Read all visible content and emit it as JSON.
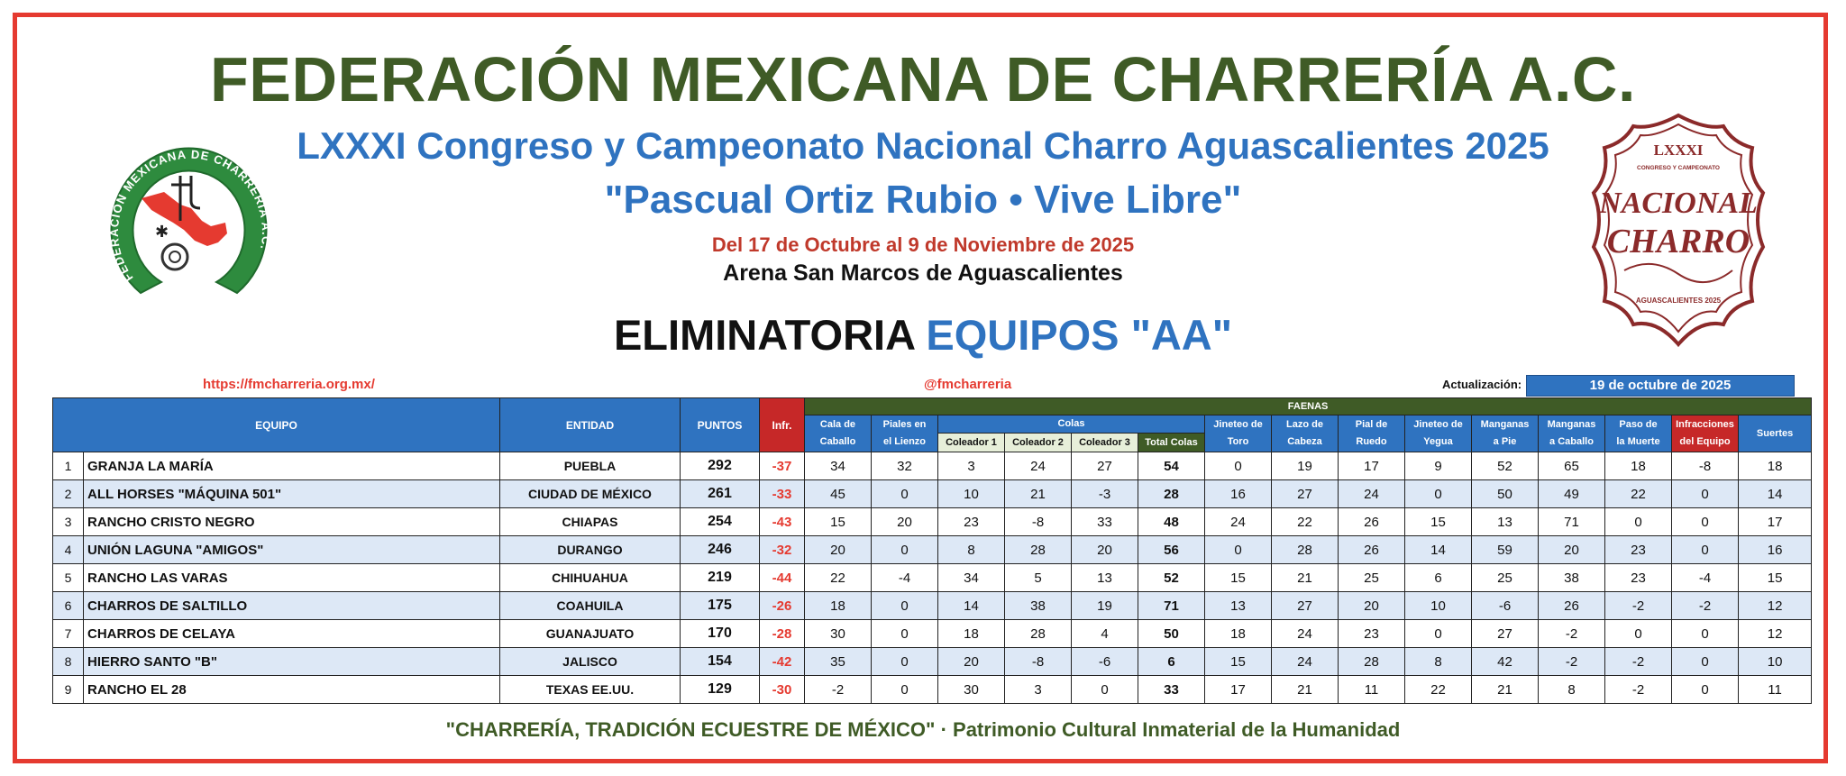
{
  "header": {
    "title": "FEDERACIÓN MEXICANA DE CHARRERÍA A.C.",
    "subtitle": "LXXXI Congreso y Campeonato Nacional Charro Aguascalientes 2025",
    "motto": "\"Pascual Ortiz Rubio • Vive Libre\"",
    "dates": "Del 17 de Octubre al 9 de Noviembre de 2025",
    "arena": "Arena San Marcos de Aguascalientes",
    "section_a": "ELIMINATORIA",
    "section_b": "EQUIPOS \"AA\""
  },
  "logos": {
    "left": "FEDERACION MEXICANA DE CHARRERIA A.C.",
    "right_top": "LXXXI",
    "right_small": "CONGRESO Y CAMPEONATO",
    "right_main_1": "NACIONAL",
    "right_main_2": "CHARRO",
    "right_bottom": "AGUASCALIENTES 2025"
  },
  "info": {
    "url": "https://fmcharreria.org.mx/",
    "handle": "@fmcharreria",
    "updated_label": "Actualización:",
    "updated_value": "19 de octubre de 2025"
  },
  "table": {
    "headers": {
      "equipo": "EQUIPO",
      "entidad": "ENTIDAD",
      "puntos": "PUNTOS",
      "infr": "Infr.",
      "faenas": "FAENAS",
      "cala_1": "Cala de",
      "cala_2": "Caballo",
      "piales_1": "Piales en",
      "piales_2": "el Lienzo",
      "colas": "Colas",
      "coleador1": "Coleador 1",
      "coleador2": "Coleador 2",
      "coleador3": "Coleador 3",
      "total_colas": "Total Colas",
      "jinete_toro_1": "Jineteo de",
      "jinete_toro_2": "Toro",
      "lazo_1": "Lazo de",
      "lazo_2": "Cabeza",
      "pial_1": "Pial de",
      "pial_2": "Ruedo",
      "jinete_yegua_1": "Jineteo de",
      "jinete_yegua_2": "Yegua",
      "manganas_pie_1": "Manganas",
      "manganas_pie_2": "a Pie",
      "manganas_cab_1": "Manganas",
      "manganas_cab_2": "a Caballo",
      "paso_1": "Paso de",
      "paso_2": "la Muerte",
      "infeq_1": "Infracciones",
      "infeq_2": "del Equipo",
      "suertes": "Suertes"
    },
    "rows": [
      {
        "pos": "1",
        "equipo": "GRANJA LA MARÍA",
        "entidad": "PUEBLA",
        "puntos": "292",
        "infr": "-37",
        "cala": "34",
        "piales": "32",
        "c1": "3",
        "c2": "24",
        "c3": "27",
        "total": "54",
        "toro": "0",
        "lazo": "19",
        "pial": "17",
        "yegua": "9",
        "mpie": "52",
        "mcab": "65",
        "paso": "18",
        "infeq": "-8",
        "suertes": "18"
      },
      {
        "pos": "2",
        "equipo": "ALL HORSES \"MÁQUINA 501\"",
        "entidad": "CIUDAD DE MÉXICO",
        "puntos": "261",
        "infr": "-33",
        "cala": "45",
        "piales": "0",
        "c1": "10",
        "c2": "21",
        "c3": "-3",
        "total": "28",
        "toro": "16",
        "lazo": "27",
        "pial": "24",
        "yegua": "0",
        "mpie": "50",
        "mcab": "49",
        "paso": "22",
        "infeq": "0",
        "suertes": "14"
      },
      {
        "pos": "3",
        "equipo": "RANCHO CRISTO NEGRO",
        "entidad": "CHIAPAS",
        "puntos": "254",
        "infr": "-43",
        "cala": "15",
        "piales": "20",
        "c1": "23",
        "c2": "-8",
        "c3": "33",
        "total": "48",
        "toro": "24",
        "lazo": "22",
        "pial": "26",
        "yegua": "15",
        "mpie": "13",
        "mcab": "71",
        "paso": "0",
        "infeq": "0",
        "suertes": "17"
      },
      {
        "pos": "4",
        "equipo": "UNIÓN LAGUNA \"AMIGOS\"",
        "entidad": "DURANGO",
        "puntos": "246",
        "infr": "-32",
        "cala": "20",
        "piales": "0",
        "c1": "8",
        "c2": "28",
        "c3": "20",
        "total": "56",
        "toro": "0",
        "lazo": "28",
        "pial": "26",
        "yegua": "14",
        "mpie": "59",
        "mcab": "20",
        "paso": "23",
        "infeq": "0",
        "suertes": "16"
      },
      {
        "pos": "5",
        "equipo": "RANCHO LAS VARAS",
        "entidad": "CHIHUAHUA",
        "puntos": "219",
        "infr": "-44",
        "cala": "22",
        "piales": "-4",
        "c1": "34",
        "c2": "5",
        "c3": "13",
        "total": "52",
        "toro": "15",
        "lazo": "21",
        "pial": "25",
        "yegua": "6",
        "mpie": "25",
        "mcab": "38",
        "paso": "23",
        "infeq": "-4",
        "suertes": "15"
      },
      {
        "pos": "6",
        "equipo": "CHARROS DE SALTILLO",
        "entidad": "COAHUILA",
        "puntos": "175",
        "infr": "-26",
        "cala": "18",
        "piales": "0",
        "c1": "14",
        "c2": "38",
        "c3": "19",
        "total": "71",
        "toro": "13",
        "lazo": "27",
        "pial": "20",
        "yegua": "10",
        "mpie": "-6",
        "mcab": "26",
        "paso": "-2",
        "infeq": "-2",
        "suertes": "12"
      },
      {
        "pos": "7",
        "equipo": "CHARROS DE CELAYA",
        "entidad": "GUANAJUATO",
        "puntos": "170",
        "infr": "-28",
        "cala": "30",
        "piales": "0",
        "c1": "18",
        "c2": "28",
        "c3": "4",
        "total": "50",
        "toro": "18",
        "lazo": "24",
        "pial": "23",
        "yegua": "0",
        "mpie": "27",
        "mcab": "-2",
        "paso": "0",
        "infeq": "0",
        "suertes": "12"
      },
      {
        "pos": "8",
        "equipo": "HIERRO SANTO \"B\"",
        "entidad": "JALISCO",
        "puntos": "154",
        "infr": "-42",
        "cala": "35",
        "piales": "0",
        "c1": "20",
        "c2": "-8",
        "c3": "-6",
        "total": "6",
        "toro": "15",
        "lazo": "24",
        "pial": "28",
        "yegua": "8",
        "mpie": "42",
        "mcab": "-2",
        "paso": "-2",
        "infeq": "0",
        "suertes": "10"
      },
      {
        "pos": "9",
        "equipo": "RANCHO EL 28",
        "entidad": "TEXAS EE.UU.",
        "puntos": "129",
        "infr": "-30",
        "cala": "-2",
        "piales": "0",
        "c1": "30",
        "c2": "3",
        "c3": "0",
        "total": "33",
        "toro": "17",
        "lazo": "21",
        "pial": "11",
        "yegua": "22",
        "mpie": "21",
        "mcab": "8",
        "paso": "-2",
        "infeq": "0",
        "suertes": "11"
      }
    ]
  },
  "footer": {
    "quote": "\"CHARRERÍA, TRADICIÓN ECUESTRE DE MÉXICO\"",
    "sep": " · ",
    "tail": "Patrimonio Cultural Inmaterial de la Humanidad"
  },
  "colors": {
    "frame": "#e53a30",
    "green": "#3f5b26",
    "blue": "#2f73c0",
    "red": "#c62828",
    "alt_row": "#dde8f6"
  }
}
